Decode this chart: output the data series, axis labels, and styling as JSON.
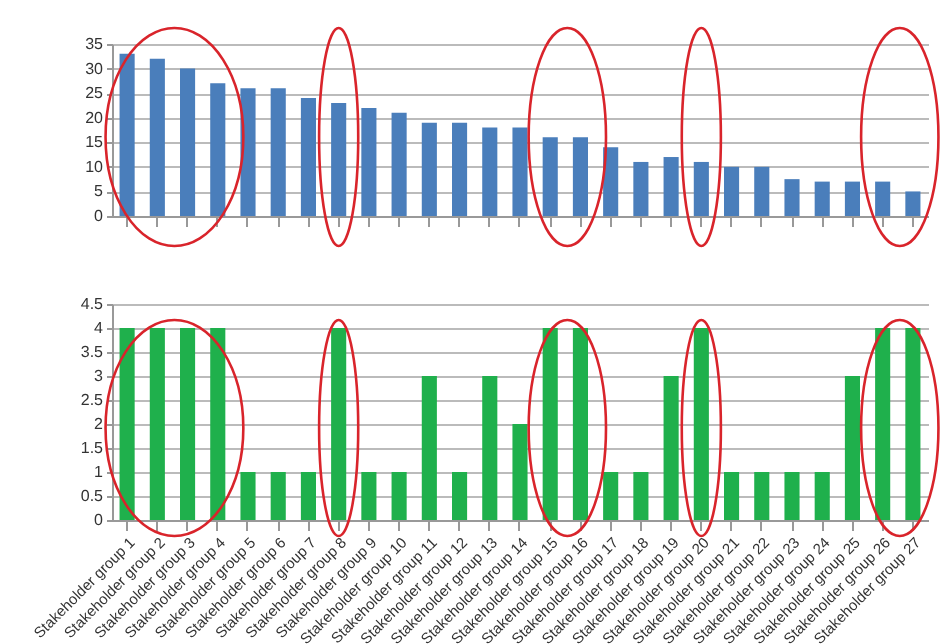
{
  "chart_data": [
    {
      "type": "bar",
      "categories": [
        null,
        null,
        null,
        null,
        null,
        null,
        null,
        null,
        null,
        null,
        null,
        null,
        null,
        null,
        null,
        null,
        null,
        null,
        null,
        null,
        null,
        null,
        null,
        null,
        null,
        null,
        null
      ],
      "values": [
        33,
        32,
        30,
        27,
        26,
        26,
        24,
        23,
        22,
        21,
        19,
        19,
        18,
        18,
        16,
        16,
        14,
        11,
        12,
        11,
        10,
        10,
        7.5,
        7,
        7,
        7,
        5
      ],
      "color": "#4a7ebb",
      "ylim": [
        0,
        35
      ],
      "yticks": [
        0,
        5,
        10,
        15,
        20,
        25,
        30,
        35
      ],
      "grid": "y",
      "tick_labels": "y"
    },
    {
      "type": "bar",
      "categories": [
        "Stakeholder group 1",
        "Stakeholder group 2",
        "Stakeholder group 3",
        "Stakeholder group 4",
        "Stakeholder group 5",
        "Stakeholder group 6",
        "Stakeholder group 7",
        "Stakeholder group 8",
        "Stakeholder group 9",
        "Stakeholder group 10",
        "Stakeholder group 11",
        "Stakeholder group 12",
        "Stakeholder group 13",
        "Stakeholder group 14",
        "Stakeholder group 15",
        "Stakeholder group 16",
        "Stakeholder group 17",
        "Stakeholder group 18",
        "Stakeholder group 19",
        "Stakeholder group 20",
        "Stakeholder group 21",
        "Stakeholder group 22",
        "Stakeholder group 23",
        "Stakeholder group 24",
        "Stakeholder group 25",
        "Stakeholder group 26",
        "Stakeholder group 27"
      ],
      "values": [
        4,
        4,
        4,
        4,
        1,
        1,
        1,
        4,
        1,
        1,
        3,
        1,
        3,
        2,
        4,
        4,
        1,
        1,
        3,
        4,
        1,
        1,
        1,
        1,
        3,
        4,
        4
      ],
      "color": "#1fb04c",
      "ylim": [
        0,
        4.5
      ],
      "yticks": [
        0,
        0.5,
        1,
        1.5,
        2,
        2.5,
        3,
        3.5,
        4,
        4.5
      ],
      "grid": "y"
    }
  ]
}
